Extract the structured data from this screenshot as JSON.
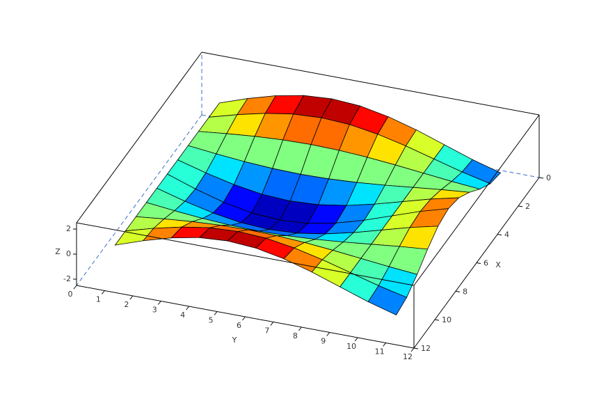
{
  "chart_data": {
    "type": "surface",
    "x": [
      1,
      2,
      3,
      4,
      5,
      6,
      7,
      8,
      9,
      10,
      11
    ],
    "y": [
      1,
      2,
      3,
      4,
      5,
      6,
      7,
      8,
      9,
      10,
      11
    ],
    "z": [
      [
        0,
        0.77,
        1.41,
        1.85,
        2,
        1.85,
        1.41,
        0.77,
        0,
        -0.77,
        -1.41
      ],
      [
        0,
        0.62,
        1.14,
        1.5,
        1.62,
        1.5,
        1.14,
        0.62,
        0,
        -0.62,
        -1.14
      ],
      [
        0,
        0.24,
        0.44,
        0.57,
        0.62,
        0.57,
        0.44,
        0.24,
        0,
        -0.24,
        -0.44
      ],
      [
        0,
        -0.24,
        -0.44,
        -0.57,
        -0.62,
        -0.57,
        -0.44,
        -0.24,
        0,
        0.24,
        0.44
      ],
      [
        0,
        -0.62,
        -1.14,
        -1.5,
        -1.62,
        -1.5,
        -1.14,
        -0.62,
        0,
        0.62,
        1.14
      ],
      [
        0,
        -0.77,
        -1.41,
        -1.85,
        -2,
        -1.85,
        -1.41,
        -0.77,
        0,
        0.77,
        1.41
      ],
      [
        0,
        -0.62,
        -1.14,
        -1.5,
        -1.62,
        -1.5,
        -1.14,
        -0.62,
        0,
        0.62,
        1.14
      ],
      [
        0,
        -0.24,
        -0.44,
        -0.57,
        -0.62,
        -0.57,
        -0.44,
        -0.24,
        0,
        0.24,
        0.44
      ],
      [
        0,
        0.24,
        0.44,
        0.57,
        0.62,
        0.57,
        0.44,
        0.24,
        0,
        -0.24,
        -0.44
      ],
      [
        0,
        0.62,
        1.14,
        1.5,
        1.62,
        1.5,
        1.14,
        0.62,
        0,
        -0.62,
        -1.14
      ],
      [
        0,
        0.77,
        1.41,
        1.85,
        2,
        1.85,
        1.41,
        0.77,
        0,
        -0.77,
        -1.41
      ]
    ],
    "xlim": [
      0,
      12
    ],
    "ylim": [
      0,
      12
    ],
    "zlim": [
      -2.5,
      2.5
    ],
    "xticks": [
      0,
      2,
      4,
      6,
      8,
      10,
      12
    ],
    "yticks": [
      0,
      1,
      2,
      3,
      4,
      5,
      6,
      7,
      8,
      9,
      10,
      11,
      12
    ],
    "zticks": [
      -2,
      0,
      2
    ],
    "xlabel": "X",
    "ylabel": "Y",
    "zlabel": "Z",
    "colormap": "jet",
    "edge_color": "#000000"
  }
}
